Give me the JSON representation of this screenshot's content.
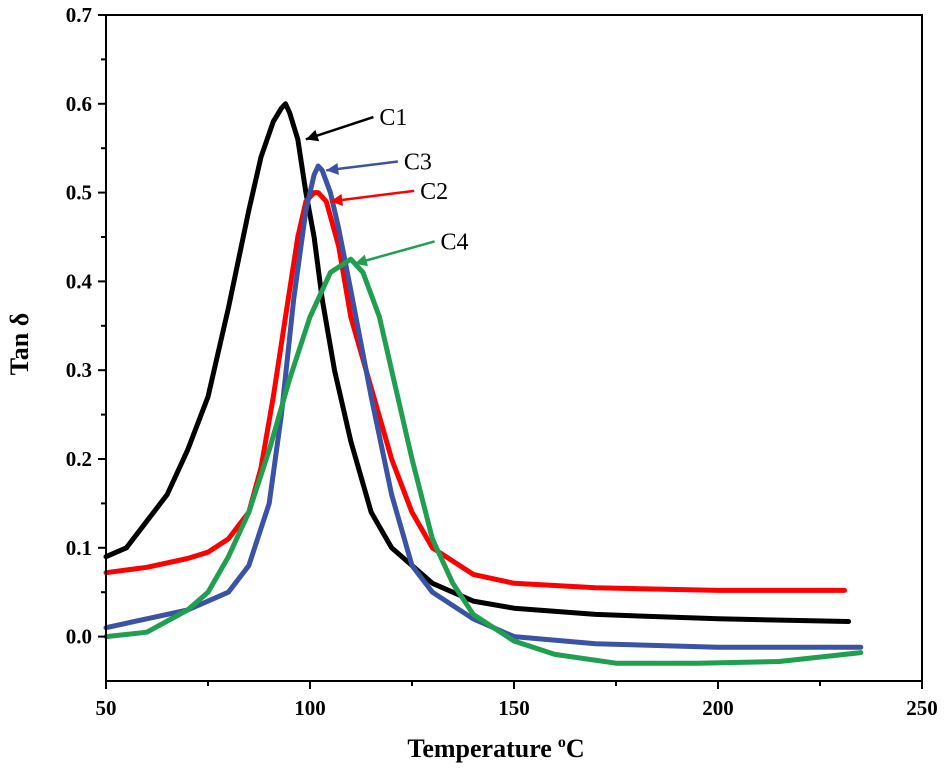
{
  "chart_data": {
    "type": "line",
    "title": "",
    "xlabel": "Temperature",
    "xlabel_unit_sup": "o",
    "xlabel_unit": "C",
    "ylabel": "Tan δ",
    "xlim": [
      50,
      250
    ],
    "ylim": [
      -0.05,
      0.7
    ],
    "xticks": [
      50,
      100,
      150,
      200,
      250
    ],
    "yticks": [
      0.0,
      0.1,
      0.2,
      0.3,
      0.4,
      0.5,
      0.6,
      0.7
    ],
    "ytick_labels": [
      "0.0",
      "0.1",
      "0.2",
      "0.3",
      "0.4",
      "0.5",
      "0.6",
      "0.7"
    ],
    "xtick_labels": [
      "50",
      "100",
      "150",
      "200",
      "250"
    ],
    "grid": false,
    "series": [
      {
        "name": "C1",
        "color": "#000000",
        "x": [
          50,
          55,
          60,
          65,
          70,
          75,
          80,
          85,
          88,
          91,
          93,
          94,
          95,
          97,
          99,
          101,
          103,
          106,
          110,
          115,
          120,
          130,
          140,
          150,
          170,
          200,
          232
        ],
        "y": [
          0.09,
          0.1,
          0.13,
          0.16,
          0.21,
          0.27,
          0.37,
          0.48,
          0.54,
          0.58,
          0.595,
          0.6,
          0.59,
          0.56,
          0.5,
          0.45,
          0.38,
          0.3,
          0.22,
          0.14,
          0.1,
          0.06,
          0.04,
          0.032,
          0.025,
          0.02,
          0.017
        ]
      },
      {
        "name": "C2",
        "color": "#ff0000",
        "x": [
          50,
          60,
          70,
          75,
          80,
          85,
          88,
          91,
          94,
          97,
          99,
          101,
          102,
          104,
          107,
          110,
          115,
          120,
          125,
          130,
          140,
          150,
          170,
          200,
          231
        ],
        "y": [
          0.072,
          0.078,
          0.088,
          0.095,
          0.11,
          0.14,
          0.19,
          0.27,
          0.36,
          0.45,
          0.49,
          0.5,
          0.5,
          0.49,
          0.44,
          0.36,
          0.28,
          0.2,
          0.14,
          0.1,
          0.07,
          0.06,
          0.055,
          0.052,
          0.052
        ]
      },
      {
        "name": "C3",
        "color": "#3a53a4",
        "x": [
          50,
          60,
          70,
          80,
          85,
          90,
          93,
          96,
          99,
          101,
          102,
          103,
          105,
          107,
          110,
          115,
          120,
          125,
          130,
          140,
          150,
          170,
          200,
          235
        ],
        "y": [
          0.01,
          0.02,
          0.03,
          0.05,
          0.08,
          0.15,
          0.25,
          0.38,
          0.48,
          0.52,
          0.53,
          0.525,
          0.5,
          0.46,
          0.39,
          0.27,
          0.16,
          0.08,
          0.05,
          0.02,
          0.0,
          -0.008,
          -0.012,
          -0.012
        ]
      },
      {
        "name": "C4",
        "color": "#1f9f4f",
        "x": [
          50,
          60,
          70,
          75,
          80,
          85,
          90,
          95,
          100,
          105,
          110,
          113,
          117,
          120,
          125,
          130,
          135,
          140,
          150,
          160,
          175,
          195,
          215,
          235
        ],
        "y": [
          0.0,
          0.005,
          0.03,
          0.05,
          0.09,
          0.14,
          0.21,
          0.29,
          0.36,
          0.41,
          0.425,
          0.41,
          0.36,
          0.3,
          0.2,
          0.11,
          0.06,
          0.025,
          -0.005,
          -0.02,
          -0.03,
          -0.03,
          -0.028,
          -0.018
        ]
      }
    ],
    "annotations": [
      {
        "label": "C1",
        "color": "#000000",
        "point_x": 98,
        "point_y": 0.56,
        "text_x": 117,
        "text_y": 0.585
      },
      {
        "label": "C3",
        "color": "#3a53a4",
        "point_x": 103,
        "point_y": 0.525,
        "text_x": 123,
        "text_y": 0.535
      },
      {
        "label": "C2",
        "color": "#ff0000",
        "point_x": 104,
        "point_y": 0.49,
        "text_x": 127,
        "text_y": 0.502
      },
      {
        "label": "C4",
        "color": "#1f9f4f",
        "point_x": 110,
        "point_y": 0.42,
        "text_x": 132,
        "text_y": 0.445
      }
    ]
  }
}
